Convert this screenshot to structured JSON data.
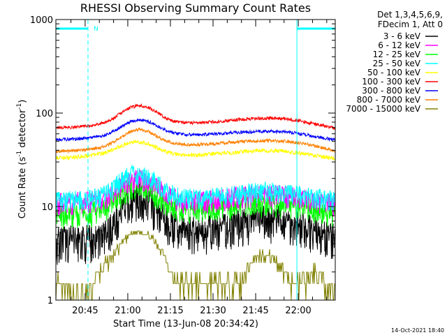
{
  "chart_data": {
    "type": "line",
    "title": "RHESSI Observing Summary Count Rates",
    "xlabel": "Start Time (13-Jun-08 20:34:42)",
    "ylabel_parts": {
      "prefix": "Count Rate (s",
      "sup1": "-1",
      "mid": " detector",
      "sup2": "-1",
      "suffix": ")"
    },
    "yscale": "log",
    "ylim": [
      1,
      1000
    ],
    "xlim_minutes": [
      34.7,
      133.0
    ],
    "x_unit": "minutes after 20:00 UT, 13-Jun-2008",
    "x_ticks": [
      {
        "minute": 45,
        "label": "20:45"
      },
      {
        "minute": 60,
        "label": "21:00"
      },
      {
        "minute": 75,
        "label": "21:15"
      },
      {
        "minute": 90,
        "label": "21:30"
      },
      {
        "minute": 105,
        "label": "21:45"
      },
      {
        "minute": 120,
        "label": "22:00"
      }
    ],
    "y_ticks": [
      {
        "value": 1,
        "label": "1"
      },
      {
        "value": 10,
        "label": "10"
      },
      {
        "value": 100,
        "label": "100"
      },
      {
        "value": 1000,
        "label": "1000"
      }
    ],
    "legend_header": [
      "Det 1,3,4,5,6,9,",
      "FDecim 1, Att 0"
    ],
    "legend_position": "right, outside plot",
    "series": [
      {
        "name": "3 - 6 keV",
        "color": "#000000",
        "x": [
          34.7,
          40,
          47,
          52,
          55,
          58,
          61,
          64,
          67,
          70,
          73,
          76,
          80,
          85,
          90,
          95,
          100,
          105,
          110,
          115,
          120,
          125,
          130,
          133
        ],
        "y": [
          4.3,
          4.4,
          4.4,
          5.0,
          6.5,
          9,
          11.5,
          12.5,
          11.5,
          9.2,
          7,
          6,
          5.6,
          5.5,
          5.6,
          6,
          6.6,
          7,
          7.3,
          7,
          6.4,
          5.6,
          4.8,
          4.5
        ]
      },
      {
        "name": "6 - 12 keV",
        "color": "#ff00ff",
        "x": [
          34.7,
          40,
          47,
          52,
          55,
          58,
          61,
          64,
          67,
          70,
          73,
          76,
          80,
          85,
          90,
          95,
          100,
          105,
          110,
          115,
          120,
          125,
          130,
          133
        ],
        "y": [
          11,
          11.2,
          11.5,
          12.5,
          14.5,
          17,
          19,
          19.5,
          18.5,
          16.5,
          14,
          12.5,
          11.5,
          11.5,
          11.8,
          12.3,
          13,
          13.5,
          13.6,
          13.2,
          12.5,
          11.8,
          11,
          10.8
        ]
      },
      {
        "name": "12 - 25 keV",
        "color": "#00ff00",
        "x": [
          34.7,
          40,
          47,
          52,
          55,
          58,
          61,
          64,
          67,
          70,
          73,
          76,
          80,
          85,
          90,
          95,
          100,
          105,
          110,
          115,
          120,
          125,
          130,
          133
        ],
        "y": [
          8,
          8.2,
          8.5,
          9.5,
          11.5,
          14,
          16,
          16.5,
          15.5,
          13.5,
          11.5,
          10,
          9.2,
          9.3,
          9.6,
          10,
          10.5,
          10.8,
          11,
          10.7,
          10,
          9.3,
          8.6,
          8.4
        ]
      },
      {
        "name": "25 - 50 keV",
        "color": "#00ffff",
        "x": [
          34.7,
          40,
          47,
          52,
          55,
          58,
          61,
          64,
          67,
          70,
          73,
          76,
          80,
          85,
          90,
          95,
          100,
          105,
          110,
          115,
          120,
          125,
          130,
          133
        ],
        "y": [
          11.5,
          11.8,
          12.2,
          13.5,
          16,
          19.5,
          22,
          22.5,
          21,
          18.5,
          15.5,
          13.5,
          12.5,
          12.5,
          12.8,
          13.3,
          14,
          14.5,
          14.7,
          14.3,
          13.5,
          12.7,
          12,
          11.8
        ]
      },
      {
        "name": "50 - 100 keV",
        "color": "#ffff00",
        "x": [
          34.7,
          40,
          47,
          52,
          55,
          58,
          61,
          64,
          67,
          70,
          73,
          76,
          80,
          85,
          90,
          95,
          100,
          105,
          110,
          115,
          120,
          125,
          130,
          133
        ],
        "y": [
          33,
          33.5,
          35,
          37.5,
          41,
          45,
          48.5,
          49,
          47,
          43,
          39,
          36.5,
          35.5,
          35.5,
          36.5,
          37.5,
          38.5,
          39.5,
          39.8,
          39,
          37.5,
          35.5,
          33.5,
          32.5
        ]
      },
      {
        "name": "100 - 300 keV",
        "color": "#ff0000",
        "x": [
          34.7,
          40,
          47,
          52,
          55,
          58,
          61,
          64,
          67,
          70,
          73,
          76,
          80,
          85,
          90,
          95,
          100,
          105,
          110,
          115,
          120,
          125,
          130,
          133
        ],
        "y": [
          70,
          70.5,
          73,
          79,
          88,
          101,
          115,
          121,
          116,
          103,
          90,
          82,
          79,
          79,
          80.5,
          83,
          85.5,
          87.5,
          88.5,
          87,
          83,
          77.5,
          72,
          69
        ]
      },
      {
        "name": "300 - 800 keV",
        "color": "#0000ff",
        "x": [
          34.7,
          40,
          47,
          52,
          55,
          58,
          61,
          64,
          67,
          70,
          73,
          76,
          80,
          85,
          90,
          95,
          100,
          105,
          110,
          115,
          120,
          125,
          130,
          133
        ],
        "y": [
          52,
          52.5,
          54,
          58,
          64,
          72,
          81,
          85,
          82,
          74,
          66,
          61,
          59,
          58.5,
          59.5,
          61,
          62.5,
          63.5,
          64,
          63,
          60.5,
          57,
          53.5,
          51.5
        ]
      },
      {
        "name": "800 - 7000 keV",
        "color": "#ff8000",
        "x": [
          34.7,
          40,
          47,
          52,
          55,
          58,
          61,
          64,
          67,
          70,
          73,
          76,
          80,
          85,
          90,
          95,
          100,
          105,
          110,
          115,
          120,
          125,
          130,
          133
        ],
        "y": [
          39,
          39.5,
          41,
          44,
          49,
          56,
          64,
          67,
          64,
          57,
          51,
          47.5,
          46,
          46,
          47,
          48.5,
          49.5,
          50.5,
          51,
          50,
          48,
          45,
          41.5,
          39.5
        ]
      },
      {
        "name": "7000 - 15000 keV",
        "color": "#808000",
        "x": [
          34.7,
          40,
          45,
          48,
          50,
          53,
          55,
          58,
          61,
          64,
          67,
          70,
          73,
          75,
          78,
          82,
          90,
          95,
          100,
          103,
          106,
          110,
          115,
          118,
          122,
          126,
          130,
          133
        ],
        "y": [
          1.5,
          1,
          1,
          1.5,
          2,
          2.5,
          3,
          4,
          5,
          5.5,
          5,
          4,
          3,
          2,
          1.5,
          1.5,
          1.5,
          1.5,
          1.5,
          2.5,
          3,
          3,
          2,
          1.5,
          1.5,
          2,
          1.5,
          1
        ]
      }
    ],
    "annotations": [
      {
        "text": "N",
        "kind": "night interval marker",
        "color": "#00ffff"
      }
    ],
    "night_intervals_minutes": [
      [
        34.7,
        46
      ],
      [
        119.5,
        133.0
      ]
    ],
    "footer_timestamp": "14-Oct-2021 18:40"
  }
}
